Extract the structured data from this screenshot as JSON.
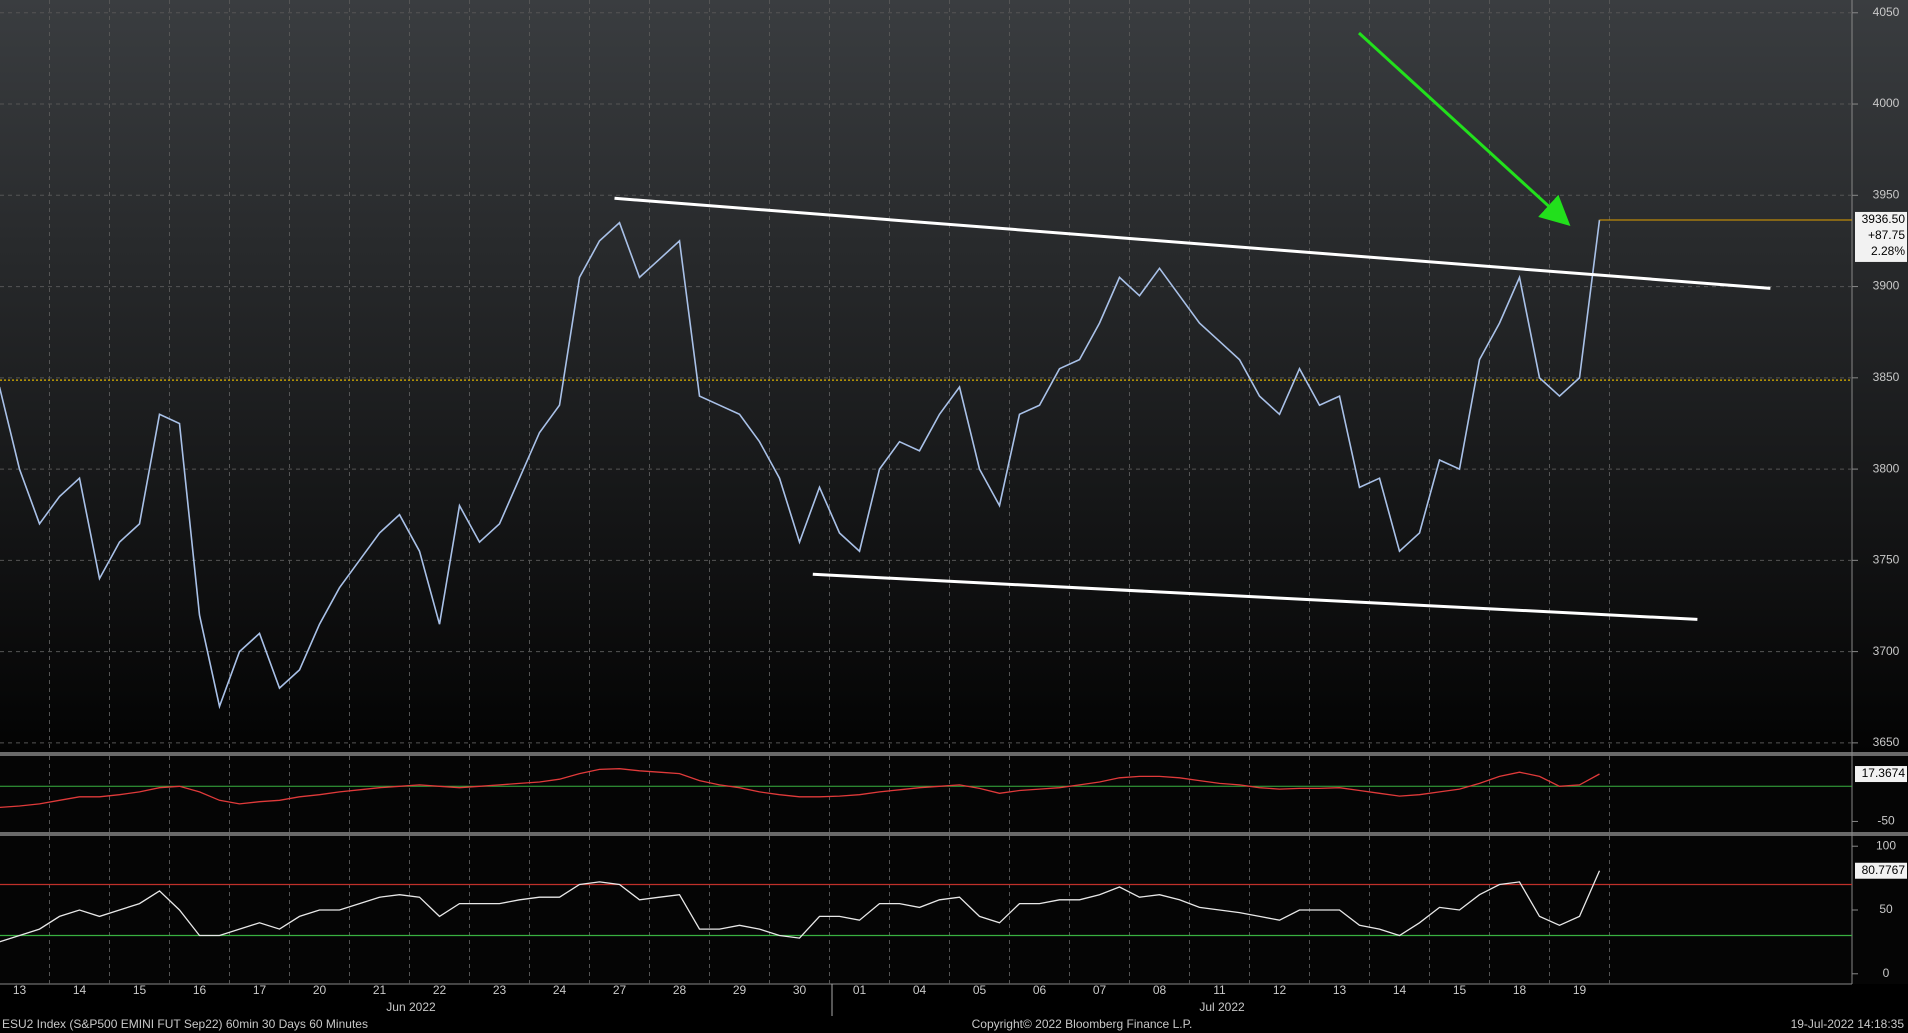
{
  "chart_data": [
    {
      "type": "line",
      "color": "#a9c1e8",
      "categories": [
        null,
        "13",
        null,
        null,
        "14",
        null,
        null,
        "15",
        null,
        null,
        "16",
        null,
        null,
        "17",
        null,
        null,
        "20",
        null,
        null,
        "21",
        null,
        null,
        "22",
        null,
        null,
        "23",
        null,
        null,
        "24",
        null,
        null,
        "27",
        null,
        null,
        "28",
        null,
        null,
        "29",
        null,
        null,
        "30",
        null,
        null,
        "01",
        null,
        null,
        "04",
        null,
        null,
        "05",
        null,
        null,
        "06",
        null,
        null,
        "07",
        null,
        null,
        "08",
        null,
        null,
        "11",
        null,
        null,
        "12",
        null,
        null,
        "13",
        null,
        null,
        "14",
        null,
        null,
        "15",
        null,
        null,
        "18",
        null,
        null,
        "19",
        null
      ],
      "values": [
        3845,
        3800,
        3770,
        3785,
        3795,
        3740,
        3760,
        3770,
        3830,
        3825,
        3720,
        3670,
        3700,
        3710,
        3680,
        3690,
        3715,
        3735,
        3750,
        3765,
        3775,
        3755,
        3715,
        3780,
        3760,
        3770,
        3795,
        3820,
        3835,
        3905,
        3925,
        3935,
        3905,
        3915,
        3925,
        3840,
        3835,
        3830,
        3815,
        3795,
        3760,
        3790,
        3765,
        3755,
        3800,
        3815,
        3810,
        3830,
        3845,
        3800,
        3780,
        3830,
        3835,
        3855,
        3860,
        3880,
        3905,
        3895,
        3910,
        3895,
        3880,
        3870,
        3860,
        3840,
        3830,
        3855,
        3835,
        3840,
        3790,
        3795,
        3755,
        3765,
        3805,
        3800,
        3860,
        3880,
        3905,
        3850,
        3840,
        3850,
        3936.5
      ],
      "ylim": [
        3645,
        4057
      ],
      "yticks": [
        3650,
        3700,
        3750,
        3800,
        3850,
        3900,
        3950,
        4000,
        4050
      ],
      "grid": true,
      "reference_line": {
        "value": 3848.75,
        "color": "#e0b400"
      },
      "last": {
        "value": 3936.5,
        "label": "3936.50",
        "color": "#e0a000"
      },
      "change": "+87.75",
      "change_pct": "2.28%",
      "month_labels": [
        "Jun 2022",
        "Jul 2022"
      ]
    },
    {
      "type": "line",
      "color": "#e03a3a",
      "values": [
        -30,
        -28,
        -25,
        -20,
        -15,
        -15,
        -12,
        -8,
        -2,
        0,
        -8,
        -20,
        -25,
        -22,
        -20,
        -15,
        -12,
        -8,
        -5,
        -2,
        0,
        2,
        0,
        -2,
        0,
        2,
        4,
        6,
        10,
        18,
        24,
        25,
        22,
        20,
        18,
        8,
        2,
        -2,
        -8,
        -12,
        -15,
        -15,
        -14,
        -12,
        -8,
        -5,
        -2,
        0,
        2,
        -3,
        -10,
        -6,
        -4,
        -2,
        2,
        6,
        12,
        14,
        14,
        12,
        8,
        4,
        2,
        -2,
        -4,
        -3,
        -3,
        -2,
        -6,
        -10,
        -14,
        -12,
        -8,
        -4,
        4,
        14,
        20,
        14,
        0,
        2,
        17.3674
      ],
      "ylim": [
        -65,
        43
      ],
      "yticks": [
        -50
      ],
      "last": {
        "value": 17.3674,
        "label": "17.3674"
      }
    },
    {
      "type": "line",
      "color": "#e8e8e8",
      "values": [
        25,
        30,
        35,
        45,
        50,
        45,
        50,
        55,
        65,
        50,
        30,
        30,
        35,
        40,
        35,
        45,
        50,
        50,
        55,
        60,
        62,
        60,
        45,
        55,
        55,
        55,
        58,
        60,
        60,
        70,
        72,
        70,
        58,
        60,
        62,
        35,
        35,
        38,
        35,
        30,
        28,
        45,
        45,
        42,
        55,
        55,
        52,
        58,
        60,
        45,
        40,
        55,
        55,
        58,
        58,
        62,
        68,
        60,
        62,
        58,
        52,
        50,
        48,
        45,
        42,
        50,
        50,
        50,
        38,
        35,
        30,
        40,
        52,
        50,
        62,
        70,
        72,
        45,
        38,
        45,
        80.7767
      ],
      "ylim": [
        -8,
        108
      ],
      "yticks": [
        0,
        50,
        100
      ],
      "levels": [
        {
          "value": 70,
          "color": "#c0302a"
        },
        {
          "value": 30,
          "color": "#38b040"
        }
      ],
      "last": {
        "value": 80.7767,
        "label": "80.7767"
      }
    }
  ],
  "footer": {
    "left": "ESU2 Index (S&P500 EMINI FUT  Sep22) 60min 30 Days 60 Minutes",
    "center": "Copyright© 2022 Bloomberg Finance L.P.",
    "right": "19-Jul-2022 14:18:35"
  }
}
